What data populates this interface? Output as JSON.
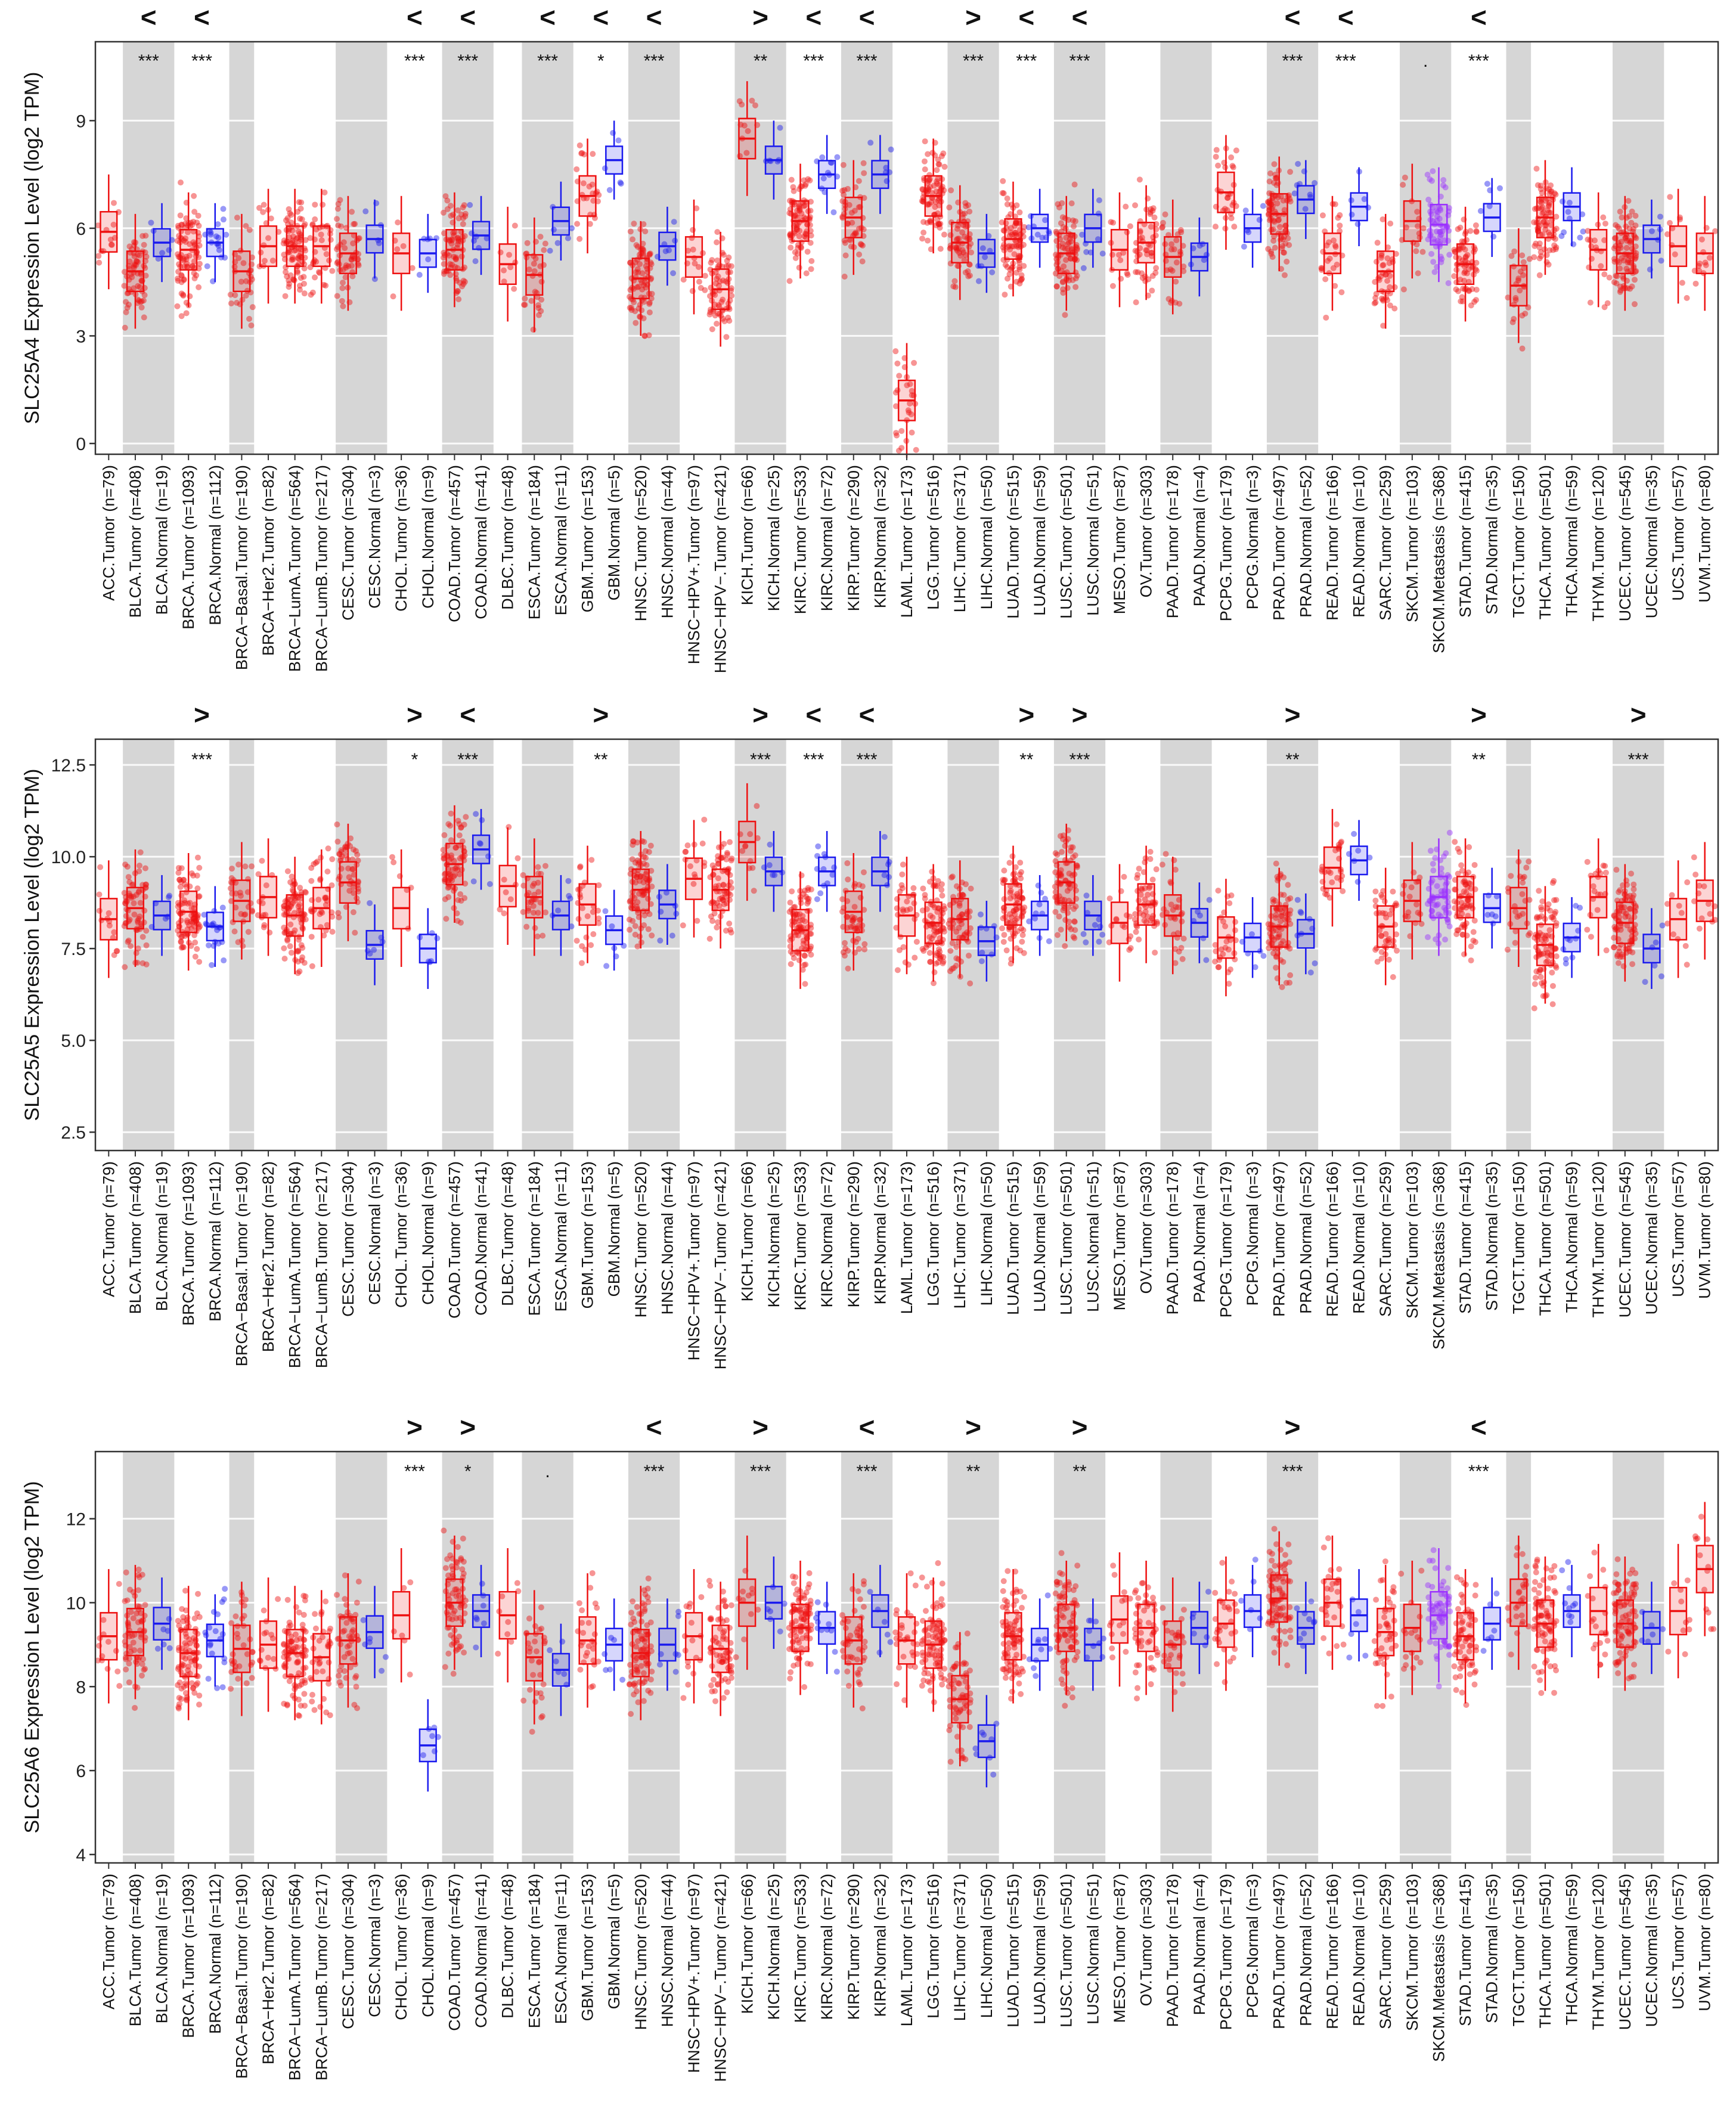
{
  "figure": {
    "description_free": true
  },
  "categories": [
    "ACC.Tumor (n=79)",
    "BLCA.Tumor (n=408)",
    "BLCA.Normal (n=19)",
    "BRCA.Tumor (n=1093)",
    "BRCA.Normal (n=112)",
    "BRCA−Basal.Tumor (n=190)",
    "BRCA−Her2.Tumor (n=82)",
    "BRCA−LumA.Tumor (n=564)",
    "BRCA−LumB.Tumor (n=217)",
    "CESC.Tumor (n=304)",
    "CESC.Normal (n=3)",
    "CHOL.Tumor (n=36)",
    "CHOL.Normal (n=9)",
    "COAD.Tumor (n=457)",
    "COAD.Normal (n=41)",
    "DLBC.Tumor (n=48)",
    "ESCA.Tumor (n=184)",
    "ESCA.Normal (n=11)",
    "GBM.Tumor (n=153)",
    "GBM.Normal (n=5)",
    "HNSC.Tumor (n=520)",
    "HNSC.Normal (n=44)",
    "HNSC−HPV+.Tumor (n=97)",
    "HNSC−HPV−.Tumor (n=421)",
    "KICH.Tumor (n=66)",
    "KICH.Normal (n=25)",
    "KIRC.Tumor (n=533)",
    "KIRC.Normal (n=72)",
    "KIRP.Tumor (n=290)",
    "KIRP.Normal (n=32)",
    "LAML.Tumor (n=173)",
    "LGG.Tumor (n=516)",
    "LIHC.Tumor (n=371)",
    "LIHC.Normal (n=50)",
    "LUAD.Tumor (n=515)",
    "LUAD.Normal (n=59)",
    "LUSC.Tumor (n=501)",
    "LUSC.Normal (n=51)",
    "MESO.Tumor (n=87)",
    "OV.Tumor (n=303)",
    "PAAD.Tumor (n=178)",
    "PAAD.Normal (n=4)",
    "PCPG.Tumor (n=179)",
    "PCPG.Normal (n=3)",
    "PRAD.Tumor (n=497)",
    "PRAD.Normal (n=52)",
    "READ.Tumor (n=166)",
    "READ.Normal (n=10)",
    "SARC.Tumor (n=259)",
    "SKCM.Tumor (n=103)",
    "SKCM.Metastasis (n=368)",
    "STAD.Tumor (n=415)",
    "STAD.Normal (n=35)",
    "TGCT.Tumor (n=150)",
    "THCA.Tumor (n=501)",
    "THCA.Normal (n=59)",
    "THYM.Tumor (n=120)",
    "UCEC.Tumor (n=545)",
    "UCEC.Normal (n=35)",
    "UCS.Tumor (n=57)",
    "UVM.Tumor (n=80)"
  ],
  "chart_data": [
    {
      "type": "box",
      "ylabel": "SLC25A4 Expression Level (log2 TPM)",
      "ylim": [
        -0.3,
        11.2
      ],
      "yticks": [
        0,
        3,
        6,
        9
      ],
      "tick_labels": [
        "0",
        "3",
        "6",
        "9"
      ],
      "medians": [
        5.9,
        4.8,
        5.6,
        5.4,
        5.6,
        4.8,
        5.5,
        5.5,
        5.5,
        5.3,
        5.7,
        5.3,
        5.3,
        5.4,
        5.8,
        5.0,
        4.7,
        6.2,
        6.9,
        7.9,
        4.6,
        5.5,
        5.2,
        4.3,
        8.5,
        7.9,
        6.2,
        7.5,
        6.3,
        7.5,
        1.2,
        6.9,
        5.6,
        5.3,
        5.7,
        6.0,
        5.3,
        6.0,
        5.4,
        5.6,
        5.2,
        5.2,
        7.0,
        6.0,
        6.4,
        6.8,
        5.3,
        6.6,
        4.8,
        6.2,
        6.1,
        5.0,
        6.3,
        4.4,
        6.3,
        6.6,
        5.4,
        5.3,
        5.7,
        5.5,
        5.3
      ],
      "significance": {
        "BLCA.Tumor (n=408)": {
          "stars": "***",
          "arrow": "<"
        },
        "BRCA.Tumor (n=1093)": {
          "stars": "***",
          "arrow": "<"
        },
        "CHOL.Tumor (n=36)": {
          "stars": "***",
          "arrow": "<"
        },
        "COAD.Tumor (n=457)": {
          "stars": "***",
          "arrow": "<"
        },
        "ESCA.Tumor (n=184)": {
          "stars": "***",
          "arrow": "<"
        },
        "GBM.Tumor (n=153)": {
          "stars": "*",
          "arrow": "<"
        },
        "HNSC.Tumor (n=520)": {
          "stars": "***",
          "arrow": "<"
        },
        "KICH.Tumor (n=66)": {
          "stars": "**",
          "arrow": ">"
        },
        "KIRC.Tumor (n=533)": {
          "stars": "***",
          "arrow": "<"
        },
        "KIRP.Tumor (n=290)": {
          "stars": "***",
          "arrow": "<"
        },
        "LIHC.Tumor (n=371)": {
          "stars": "***",
          "arrow": ">"
        },
        "LUAD.Tumor (n=515)": {
          "stars": "***",
          "arrow": "<"
        },
        "LUSC.Tumor (n=501)": {
          "stars": "***",
          "arrow": "<"
        },
        "PRAD.Tumor (n=497)": {
          "stars": "***",
          "arrow": "<"
        },
        "READ.Tumor (n=166)": {
          "stars": "***",
          "arrow": "<"
        },
        "SKCM.Tumor (n=103)": {
          "stars": ".",
          "arrow": ""
        },
        "STAD.Tumor (n=415)": {
          "stars": "***",
          "arrow": "<"
        }
      }
    },
    {
      "type": "box",
      "ylabel": "SLC25A5 Expression Level (log2 TPM)",
      "ylim": [
        2.0,
        13.2
      ],
      "yticks": [
        2.5,
        5.0,
        7.5,
        10.0,
        12.5
      ],
      "tick_labels": [
        "2.5",
        "5.0",
        "7.5",
        "10.0",
        "12.5"
      ],
      "medians": [
        8.3,
        8.6,
        8.4,
        8.5,
        8.1,
        8.8,
        8.9,
        8.4,
        8.6,
        9.3,
        7.6,
        8.6,
        7.5,
        9.8,
        10.2,
        9.2,
        8.9,
        8.4,
        8.7,
        8.0,
        9.1,
        8.7,
        9.4,
        9.1,
        10.4,
        9.6,
        8.0,
        9.6,
        8.5,
        9.6,
        8.4,
        8.2,
        8.3,
        7.7,
        8.7,
        8.4,
        9.3,
        8.4,
        8.2,
        8.7,
        8.4,
        8.2,
        7.8,
        7.8,
        8.1,
        7.9,
        9.7,
        9.9,
        8.1,
        8.8,
        8.9,
        8.9,
        8.6,
        8.6,
        7.6,
        7.8,
        8.9,
        8.2,
        7.5,
        8.3,
        8.8
      ],
      "significance": {
        "BRCA.Tumor (n=1093)": {
          "stars": "***",
          "arrow": ">"
        },
        "CHOL.Tumor (n=36)": {
          "stars": "*",
          "arrow": ">"
        },
        "COAD.Tumor (n=457)": {
          "stars": "***",
          "arrow": "<"
        },
        "GBM.Tumor (n=153)": {
          "stars": "**",
          "arrow": ">"
        },
        "KICH.Tumor (n=66)": {
          "stars": "***",
          "arrow": ">"
        },
        "KIRC.Tumor (n=533)": {
          "stars": "***",
          "arrow": "<"
        },
        "KIRP.Tumor (n=290)": {
          "stars": "***",
          "arrow": "<"
        },
        "LUAD.Tumor (n=515)": {
          "stars": "**",
          "arrow": ">"
        },
        "LUSC.Tumor (n=501)": {
          "stars": "***",
          "arrow": ">"
        },
        "PRAD.Tumor (n=497)": {
          "stars": "**",
          "arrow": ">"
        },
        "STAD.Tumor (n=415)": {
          "stars": "**",
          "arrow": ">"
        },
        "UCEC.Tumor (n=545)": {
          "stars": "***",
          "arrow": ">"
        }
      }
    },
    {
      "type": "box",
      "ylabel": "SLC25A6 Expression Level (log2 TPM)",
      "ylim": [
        3.8,
        13.6
      ],
      "yticks": [
        4,
        6,
        8,
        10,
        12
      ],
      "tick_labels": [
        "4",
        "6",
        "8",
        "10",
        "12"
      ],
      "medians": [
        9.2,
        9.3,
        9.5,
        8.8,
        9.1,
        8.9,
        9.0,
        8.8,
        8.7,
        9.1,
        9.3,
        9.7,
        6.6,
        10.0,
        9.8,
        9.7,
        8.7,
        8.4,
        9.1,
        9.0,
        8.8,
        9.0,
        9.2,
        8.9,
        10.0,
        10.0,
        9.4,
        9.4,
        9.1,
        9.8,
        9.1,
        9.0,
        7.7,
        6.7,
        9.2,
        9.0,
        9.4,
        9.0,
        9.6,
        9.4,
        9.0,
        9.4,
        9.5,
        9.8,
        10.1,
        9.4,
        10.0,
        9.7,
        9.3,
        9.4,
        9.7,
        9.2,
        9.5,
        10.0,
        9.5,
        9.8,
        9.8,
        9.5,
        9.4,
        9.8,
        10.8
      ],
      "significance": {
        "CHOL.Tumor (n=36)": {
          "stars": "***",
          "arrow": ">"
        },
        "COAD.Tumor (n=457)": {
          "stars": "*",
          "arrow": ">"
        },
        "ESCA.Tumor (n=184)": {
          "stars": ".",
          "arrow": ""
        },
        "HNSC.Tumor (n=520)": {
          "stars": "***",
          "arrow": "<"
        },
        "KICH.Tumor (n=66)": {
          "stars": "***",
          "arrow": ">"
        },
        "KIRP.Tumor (n=290)": {
          "stars": "***",
          "arrow": "<"
        },
        "LIHC.Tumor (n=371)": {
          "stars": "**",
          "arrow": ">"
        },
        "LUSC.Tumor (n=501)": {
          "stars": "**",
          "arrow": ">"
        },
        "PRAD.Tumor (n=497)": {
          "stars": "***",
          "arrow": ">"
        },
        "STAD.Tumor (n=415)": {
          "stars": "***",
          "arrow": "<"
        }
      }
    }
  ],
  "colors": {
    "tumor": "#ee1111",
    "normal": "#1a1aee",
    "metastasis": "#9b30ff",
    "shade": "#d6d6d6",
    "grid": "#ececec",
    "axis": "#333333"
  }
}
